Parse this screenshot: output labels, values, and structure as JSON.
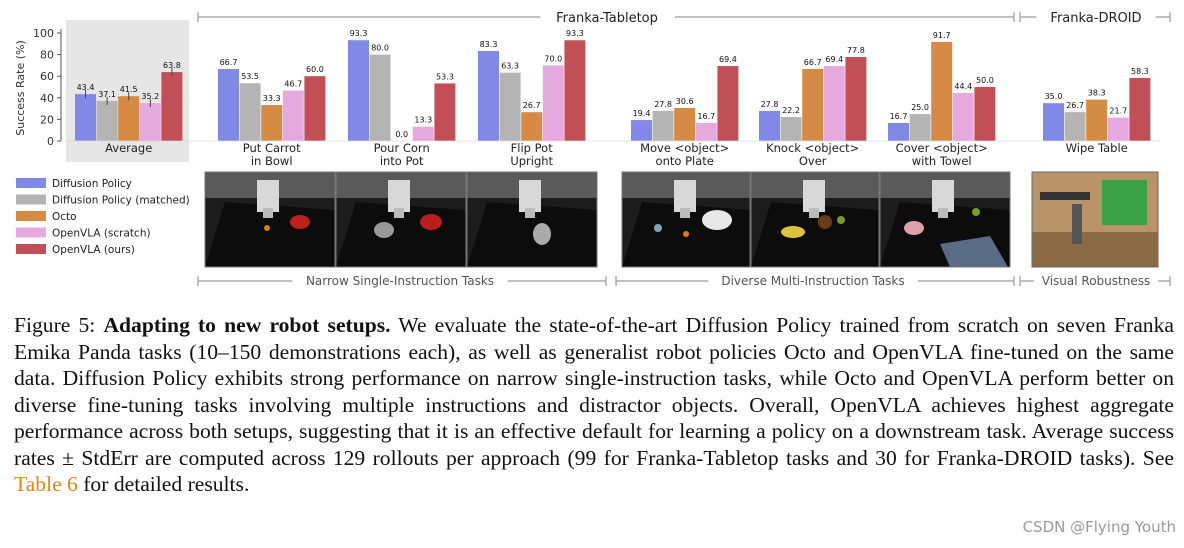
{
  "figure": {
    "headers": {
      "tabletop": "Franka-Tabletop",
      "droid": "Franka-DROID",
      "narrow": "Narrow Single-Instruction Tasks",
      "diverse": "Diverse Multi-Instruction Tasks",
      "visual": "Visual Robustness"
    },
    "images": [
      "Put Carrot in Bowl scene",
      "Pour Corn into Pot scene",
      "Flip Pot Upright scene",
      "Move object onto Plate scene",
      "Knock object Over scene",
      "Cover object with Towel scene",
      "Wipe Table scene"
    ]
  },
  "chart_data": {
    "type": "bar",
    "ylabel": "Success Rate (%)",
    "yticks": [
      0,
      20,
      40,
      60,
      80,
      100
    ],
    "ylim": [
      0,
      100
    ],
    "series": [
      {
        "name": "Diffusion Policy",
        "color": "#8189e6"
      },
      {
        "name": "Diffusion Policy (matched)",
        "color": "#b4b4b4"
      },
      {
        "name": "Octo",
        "color": "#d68b45"
      },
      {
        "name": "OpenVLA (scratch)",
        "color": "#e6a9df"
      },
      {
        "name": "OpenVLA (ours)",
        "color": "#c24f56"
      }
    ],
    "groups": [
      {
        "label": [
          "Average"
        ],
        "values": [
          43.4,
          37.1,
          41.5,
          35.2,
          63.8
        ],
        "labels": [
          "43.4",
          "37.1",
          "41.5",
          "35.2",
          "63.8"
        ],
        "errorbars": true
      },
      {
        "label": [
          "Put Carrot",
          "in Bowl"
        ],
        "values": [
          66.7,
          53.5,
          33.3,
          46.7,
          60.0
        ],
        "labels": [
          "66.7",
          "53.5",
          "33.3",
          "46.7",
          "60.0"
        ]
      },
      {
        "label": [
          "Pour Corn",
          "into Pot"
        ],
        "values": [
          93.3,
          80.0,
          0.0,
          13.3,
          53.3
        ],
        "labels": [
          "93.3",
          "80.0",
          "0.0",
          "13.3",
          "53.3"
        ]
      },
      {
        "label": [
          "Flip Pot",
          "Upright"
        ],
        "values": [
          83.3,
          63.3,
          26.7,
          70.0,
          93.3
        ],
        "labels": [
          "83.3",
          "63.3",
          "26.7",
          "70.0",
          "93.3"
        ]
      },
      {
        "label": [
          "Move <object>",
          "onto Plate"
        ],
        "values": [
          19.4,
          27.8,
          30.6,
          16.7,
          69.4
        ],
        "labels": [
          "19.4",
          "27.8",
          "30.6",
          "16.7",
          "69.4"
        ]
      },
      {
        "label": [
          "Knock <object>",
          "Over"
        ],
        "values": [
          27.8,
          22.2,
          66.7,
          69.4,
          77.8
        ],
        "labels": [
          "27.8",
          "22.2",
          "66.7",
          "69.4",
          "77.8"
        ]
      },
      {
        "label": [
          "Cover <object>",
          "with Towel"
        ],
        "values": [
          16.7,
          25.0,
          91.7,
          44.4,
          50.0
        ],
        "labels": [
          "16.7",
          "25.0",
          "91.7",
          "44.4",
          "50.0"
        ]
      },
      {
        "label": [
          "Wipe Table"
        ],
        "values": [
          35.0,
          26.7,
          38.3,
          21.7,
          58.3
        ],
        "labels": [
          "35.0",
          "26.7",
          "38.3",
          "21.7",
          "58.3"
        ]
      }
    ]
  },
  "caption": {
    "figure_label": "Figure 5:",
    "bold_title": "Adapting to new robot setups.",
    "text_1": " We evaluate the state-of-the-art Diffusion Policy trained from scratch on seven Franka Emika Panda tasks (10–150 demonstrations each), as well as generalist robot policies Octo and OpenVLA fine-tuned on the same data. Diffusion Policy exhibits strong performance on narrow single-instruction tasks, while Octo and OpenVLA perform better on diverse fine-tuning tasks involving multiple instructions and distractor objects. Overall, OpenVLA achieves highest aggregate performance across both setups, suggesting that it is an effective default for learning a policy on a downstream task. Average success rates ± StdErr are computed across 129 rollouts per approach (99 for Franka-Tabletop tasks and 30 for Franka-DROID tasks). See ",
    "link": "Table 6",
    "text_2": " for detailed results."
  },
  "watermark": "CSDN @Flying Youth"
}
